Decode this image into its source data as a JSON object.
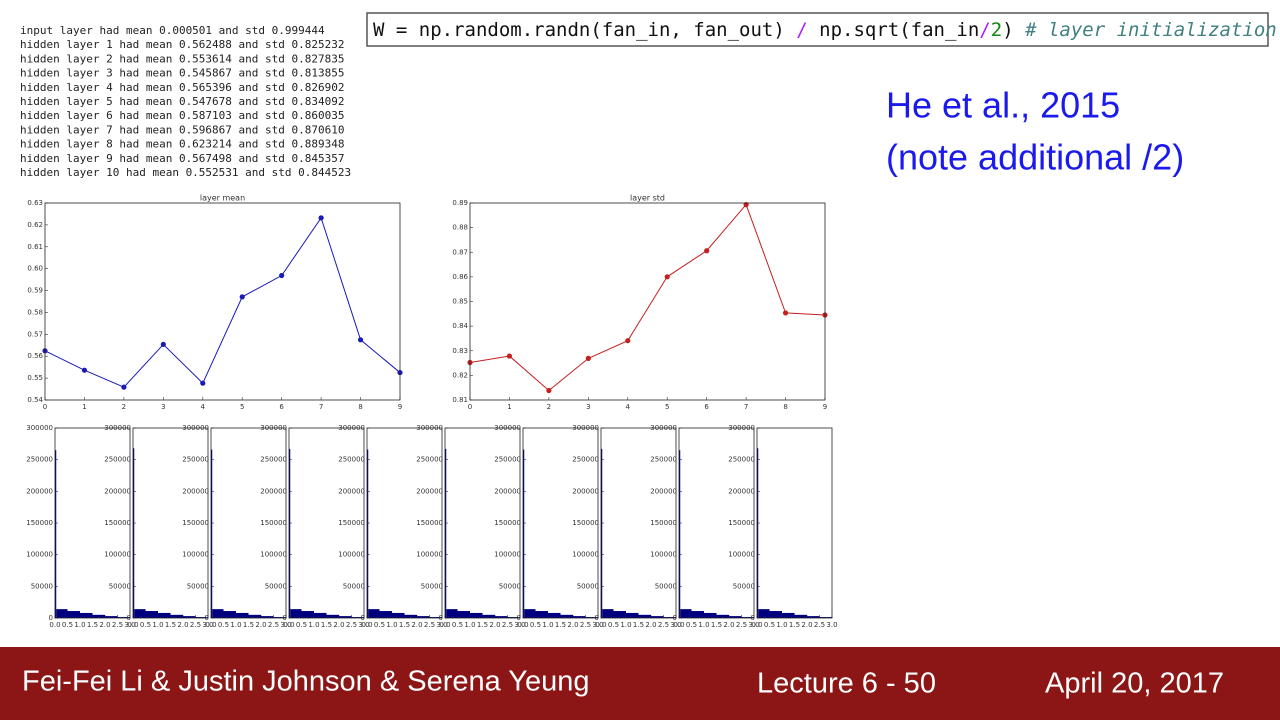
{
  "log": [
    "input layer had mean 0.000501 and std 0.999444",
    "hidden layer 1 had mean 0.562488 and std 0.825232",
    "hidden layer 2 had mean 0.553614 and std 0.827835",
    "hidden layer 3 had mean 0.545867 and std 0.813855",
    "hidden layer 4 had mean 0.565396 and std 0.826902",
    "hidden layer 5 had mean 0.547678 and std 0.834092",
    "hidden layer 6 had mean 0.587103 and std 0.860035",
    "hidden layer 7 had mean 0.596867 and std 0.870610",
    "hidden layer 8 had mean 0.623214 and std 0.889348",
    "hidden layer 9 had mean 0.567498 and std 0.845357",
    "hidden layer 10 had mean 0.552531 and std 0.844523"
  ],
  "code": {
    "parts": [
      "W = np.random.randn(fan_in, fan_out) ",
      "/",
      " np.sqrt(fan_in",
      "/",
      "2",
      ") ",
      "# layer initialization"
    ]
  },
  "note": [
    "He et al., 2015",
    "(note additional /2)"
  ],
  "footer": {
    "authors": "Fei-Fei Li & Justin Johnson & Serena Yeung",
    "lecture": "Lecture 6 - 50",
    "date": "April 20, 2017"
  },
  "chart_data": [
    {
      "type": "line",
      "title": "layer mean",
      "x": [
        0,
        1,
        2,
        3,
        4,
        5,
        6,
        7,
        8,
        9
      ],
      "values": [
        0.562488,
        0.553614,
        0.545867,
        0.565396,
        0.547678,
        0.587103,
        0.596867,
        0.623214,
        0.567498,
        0.552531
      ],
      "color": "#1a1ab8",
      "xlim": [
        0,
        9
      ],
      "xticks": [
        0,
        1,
        2,
        3,
        4,
        5,
        6,
        7,
        8,
        9
      ],
      "ylim": [
        0.54,
        0.63
      ],
      "yticks": [
        0.54,
        0.55,
        0.56,
        0.57,
        0.58,
        0.59,
        {
          "value": 0.6,
          "label": "0.60"
        },
        0.61,
        0.62,
        0.63
      ]
    },
    {
      "type": "line",
      "title": "layer std",
      "x": [
        0,
        1,
        2,
        3,
        4,
        5,
        6,
        7,
        8,
        9
      ],
      "values": [
        0.825232,
        0.827835,
        0.813855,
        0.826902,
        0.834092,
        0.860035,
        0.87061,
        0.889348,
        0.845357,
        0.844523
      ],
      "color": "#c42020",
      "xlim": [
        0,
        9
      ],
      "xticks": [
        0,
        1,
        2,
        3,
        4,
        5,
        6,
        7,
        8,
        9
      ],
      "ylim": [
        0.81,
        0.89
      ],
      "yticks": [
        0.81,
        0.82,
        0.83,
        0.84,
        0.85,
        0.86,
        0.87,
        0.88,
        0.89
      ]
    },
    {
      "type": "histogram",
      "bins": [
        0,
        0.05,
        0.5,
        1,
        1.5,
        2,
        2.5,
        3
      ],
      "values": [
        265000,
        14000,
        11000,
        8000,
        5000,
        3000,
        1500
      ],
      "color": "#00007f",
      "xlim": [
        0,
        3
      ],
      "xticks": [
        {
          "value": 0,
          "label": "0.0"
        },
        0.5,
        {
          "value": 1,
          "label": "1.0"
        },
        1.5,
        {
          "value": 2,
          "label": "2.0"
        },
        2.5,
        {
          "value": 3,
          "label": "3.0"
        }
      ],
      "ylim": [
        0,
        300000
      ],
      "yticks": [
        0,
        50000,
        100000,
        150000,
        200000,
        250000,
        300000
      ]
    },
    {
      "type": "histogram",
      "bins": [
        0,
        0.05,
        0.5,
        1,
        1.5,
        2,
        2.5,
        3
      ],
      "values": [
        268000,
        14000,
        11000,
        8000,
        5000,
        3000,
        1500
      ],
      "color": "#00007f",
      "xlim": [
        0,
        3
      ],
      "xticks": [
        {
          "value": 0,
          "label": "0.0"
        },
        0.5,
        {
          "value": 1,
          "label": "1.0"
        },
        1.5,
        {
          "value": 2,
          "label": "2.0"
        },
        2.5,
        {
          "value": 3,
          "label": "3.0"
        }
      ],
      "ylim": [
        0,
        300000
      ],
      "yticks": [
        0,
        50000,
        100000,
        150000,
        200000,
        250000,
        300000
      ]
    },
    {
      "type": "histogram",
      "bins": [
        0,
        0.05,
        0.5,
        1,
        1.5,
        2,
        2.5,
        3
      ],
      "values": [
        266000,
        14000,
        11000,
        8000,
        5000,
        3000,
        1500
      ],
      "color": "#00007f",
      "xlim": [
        0,
        3
      ],
      "xticks": [
        {
          "value": 0,
          "label": "0.0"
        },
        0.5,
        {
          "value": 1,
          "label": "1.0"
        },
        1.5,
        {
          "value": 2,
          "label": "2.0"
        },
        2.5,
        {
          "value": 3,
          "label": "3.0"
        }
      ],
      "ylim": [
        0,
        300000
      ],
      "yticks": [
        0,
        50000,
        100000,
        150000,
        200000,
        250000,
        300000
      ]
    },
    {
      "type": "histogram",
      "bins": [
        0,
        0.05,
        0.5,
        1,
        1.5,
        2,
        2.5,
        3
      ],
      "values": [
        267000,
        14000,
        11000,
        8000,
        5000,
        3000,
        1500
      ],
      "color": "#00007f",
      "xlim": [
        0,
        3
      ],
      "xticks": [
        {
          "value": 0,
          "label": "0.0"
        },
        0.5,
        {
          "value": 1,
          "label": "1.0"
        },
        1.5,
        {
          "value": 2,
          "label": "2.0"
        },
        2.5,
        {
          "value": 3,
          "label": "3.0"
        }
      ],
      "ylim": [
        0,
        300000
      ],
      "yticks": [
        0,
        50000,
        100000,
        150000,
        200000,
        250000,
        300000
      ]
    },
    {
      "type": "histogram",
      "bins": [
        0,
        0.05,
        0.5,
        1,
        1.5,
        2,
        2.5,
        3
      ],
      "values": [
        266000,
        14000,
        11000,
        8000,
        5000,
        3000,
        1500
      ],
      "color": "#00007f",
      "xlim": [
        0,
        3
      ],
      "xticks": [
        {
          "value": 0,
          "label": "0.0"
        },
        0.5,
        {
          "value": 1,
          "label": "1.0"
        },
        1.5,
        {
          "value": 2,
          "label": "2.0"
        },
        2.5,
        {
          "value": 3,
          "label": "3.0"
        }
      ],
      "ylim": [
        0,
        300000
      ],
      "yticks": [
        0,
        50000,
        100000,
        150000,
        200000,
        250000,
        300000
      ]
    },
    {
      "type": "histogram",
      "bins": [
        0,
        0.05,
        0.5,
        1,
        1.5,
        2,
        2.5,
        3
      ],
      "values": [
        267000,
        14000,
        11000,
        8000,
        5000,
        3000,
        1500
      ],
      "color": "#00007f",
      "xlim": [
        0,
        3
      ],
      "xticks": [
        {
          "value": 0,
          "label": "0.0"
        },
        0.5,
        {
          "value": 1,
          "label": "1.0"
        },
        1.5,
        {
          "value": 2,
          "label": "2.0"
        },
        2.5,
        {
          "value": 3,
          "label": "3.0"
        }
      ],
      "ylim": [
        0,
        300000
      ],
      "yticks": [
        0,
        50000,
        100000,
        150000,
        200000,
        250000,
        300000
      ]
    },
    {
      "type": "histogram",
      "bins": [
        0,
        0.05,
        0.5,
        1,
        1.5,
        2,
        2.5,
        3
      ],
      "values": [
        266000,
        14000,
        11000,
        8000,
        5000,
        3000,
        1500
      ],
      "color": "#00007f",
      "xlim": [
        0,
        3
      ],
      "xticks": [
        {
          "value": 0,
          "label": "0.0"
        },
        0.5,
        {
          "value": 1,
          "label": "1.0"
        },
        1.5,
        {
          "value": 2,
          "label": "2.0"
        },
        2.5,
        {
          "value": 3,
          "label": "3.0"
        }
      ],
      "ylim": [
        0,
        300000
      ],
      "yticks": [
        0,
        50000,
        100000,
        150000,
        200000,
        250000,
        300000
      ]
    },
    {
      "type": "histogram",
      "bins": [
        0,
        0.05,
        0.5,
        1,
        1.5,
        2,
        2.5,
        3
      ],
      "values": [
        267000,
        14000,
        11000,
        8000,
        5000,
        3000,
        1500
      ],
      "color": "#00007f",
      "xlim": [
        0,
        3
      ],
      "xticks": [
        {
          "value": 0,
          "label": "0.0"
        },
        0.5,
        {
          "value": 1,
          "label": "1.0"
        },
        1.5,
        {
          "value": 2,
          "label": "2.0"
        },
        2.5,
        {
          "value": 3,
          "label": "3.0"
        }
      ],
      "ylim": [
        0,
        300000
      ],
      "yticks": [
        0,
        50000,
        100000,
        150000,
        200000,
        250000,
        300000
      ]
    },
    {
      "type": "histogram",
      "bins": [
        0,
        0.05,
        0.5,
        1,
        1.5,
        2,
        2.5,
        3
      ],
      "values": [
        265000,
        14000,
        11000,
        8000,
        5000,
        3000,
        1500
      ],
      "color": "#00007f",
      "xlim": [
        0,
        3
      ],
      "xticks": [
        {
          "value": 0,
          "label": "0.0"
        },
        0.5,
        {
          "value": 1,
          "label": "1.0"
        },
        1.5,
        {
          "value": 2,
          "label": "2.0"
        },
        2.5,
        {
          "value": 3,
          "label": "3.0"
        }
      ],
      "ylim": [
        0,
        300000
      ],
      "yticks": [
        0,
        50000,
        100000,
        150000,
        200000,
        250000,
        300000
      ]
    },
    {
      "type": "histogram",
      "bins": [
        0,
        0.05,
        0.5,
        1,
        1.5,
        2,
        2.5,
        3
      ],
      "values": [
        268000,
        14000,
        11000,
        8000,
        5000,
        3000,
        1500
      ],
      "color": "#00007f",
      "xlim": [
        0,
        3
      ],
      "xticks": [
        {
          "value": 0,
          "label": "0.0"
        },
        0.5,
        {
          "value": 1,
          "label": "1.0"
        },
        1.5,
        {
          "value": 2,
          "label": "2.0"
        },
        2.5,
        {
          "value": 3,
          "label": "3.0"
        }
      ],
      "ylim": [
        0,
        300000
      ],
      "yticks": [
        0,
        50000,
        100000,
        150000,
        200000,
        250000,
        300000
      ]
    }
  ]
}
